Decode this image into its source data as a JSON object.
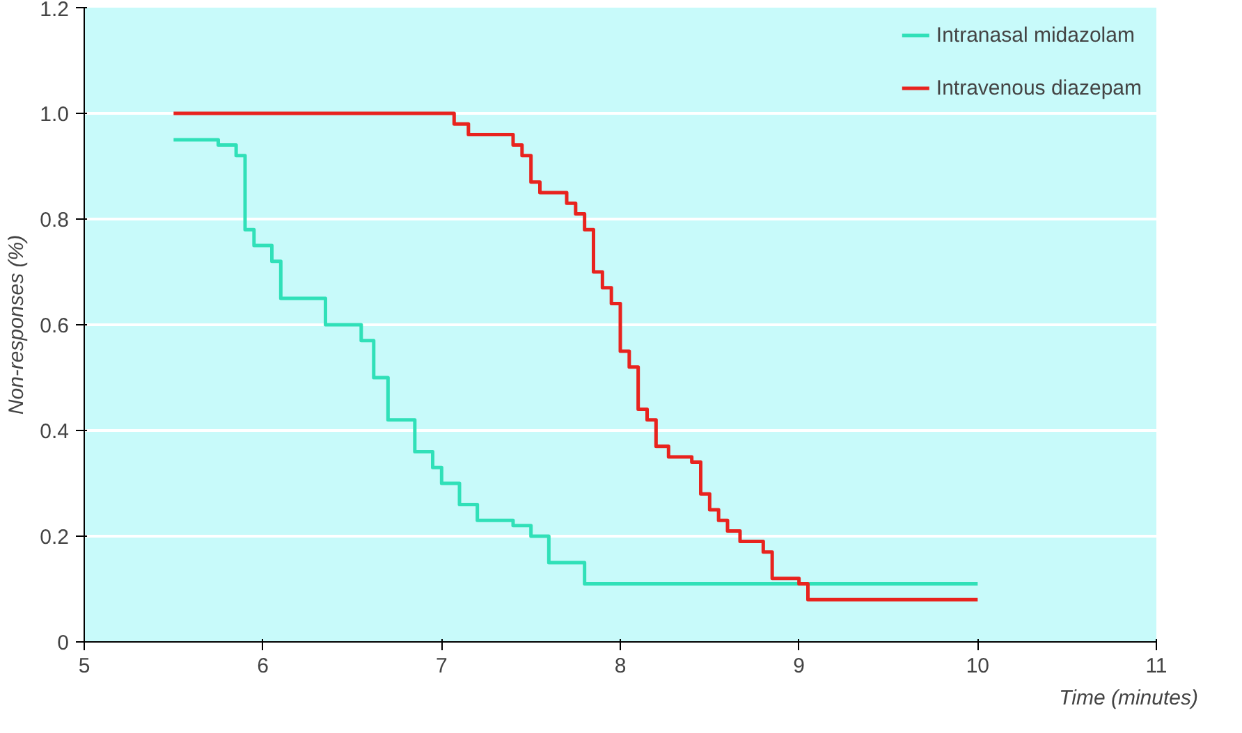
{
  "chart_data": {
    "type": "step",
    "xlabel": "Time (minutes)",
    "ylabel": "Non-responses (%)",
    "xlim": [
      5,
      11
    ],
    "ylim": [
      0,
      1.2
    ],
    "xticks": [
      5,
      6,
      7,
      8,
      9,
      10,
      11
    ],
    "yticks": [
      0,
      0.2,
      0.4,
      0.6,
      0.8,
      {
        "value": 1.0,
        "label": "1.0"
      },
      1.2
    ],
    "grid": "y",
    "legend": "top right",
    "series": [
      {
        "name": "Intranasal midazolam",
        "color": "#30e0b8",
        "x": [
          5.5,
          5.75,
          5.85,
          5.9,
          5.95,
          6.05,
          6.1,
          6.35,
          6.55,
          6.62,
          6.7,
          6.85,
          6.95,
          7.0,
          7.1,
          7.2,
          7.4,
          7.5,
          7.6,
          7.8,
          10
        ],
        "values": [
          0.95,
          0.94,
          0.92,
          0.78,
          0.75,
          0.72,
          0.65,
          0.6,
          0.57,
          0.5,
          0.42,
          0.36,
          0.33,
          0.3,
          0.26,
          0.23,
          0.22,
          0.2,
          0.15,
          0.11,
          0.11
        ]
      },
      {
        "name": "Intravenous diazepam",
        "color": "#e8231e",
        "x": [
          5.5,
          7.07,
          7.15,
          7.4,
          7.45,
          7.5,
          7.55,
          7.7,
          7.75,
          7.8,
          7.85,
          7.9,
          7.95,
          8.0,
          8.05,
          8.1,
          8.15,
          8.2,
          8.27,
          8.4,
          8.45,
          8.5,
          8.55,
          8.6,
          8.67,
          8.8,
          8.85,
          9.0,
          9.05,
          10
        ],
        "values": [
          1.0,
          0.98,
          0.96,
          0.94,
          0.92,
          0.87,
          0.85,
          0.83,
          0.81,
          0.78,
          0.7,
          0.67,
          0.64,
          0.55,
          0.52,
          0.44,
          0.42,
          0.37,
          0.35,
          0.34,
          0.28,
          0.25,
          0.23,
          0.21,
          0.19,
          0.17,
          0.12,
          0.11,
          0.08,
          0.08
        ]
      }
    ]
  }
}
